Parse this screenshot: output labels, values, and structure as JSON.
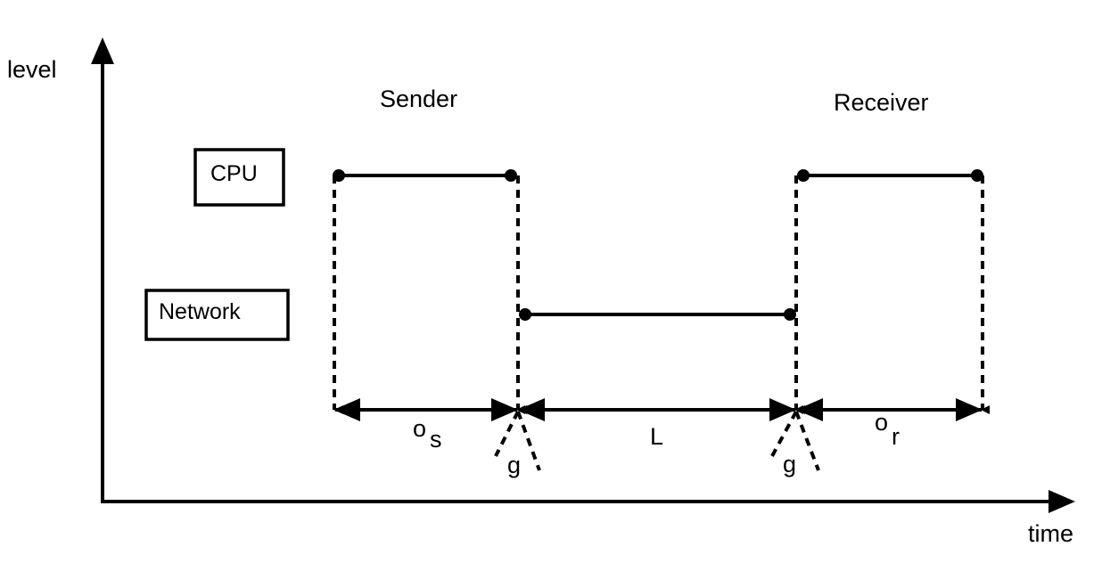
{
  "axes": {
    "y_label": "level",
    "x_label": "time"
  },
  "phases": {
    "sender": "Sender",
    "receiver": "Receiver"
  },
  "levels": {
    "cpu": "CPU",
    "network": "Network"
  },
  "intervals": {
    "send_overhead": {
      "main": "o",
      "sub": "s"
    },
    "latency": "L",
    "gap": "g",
    "receive_overhead": {
      "main": "o",
      "sub": "r"
    }
  }
}
